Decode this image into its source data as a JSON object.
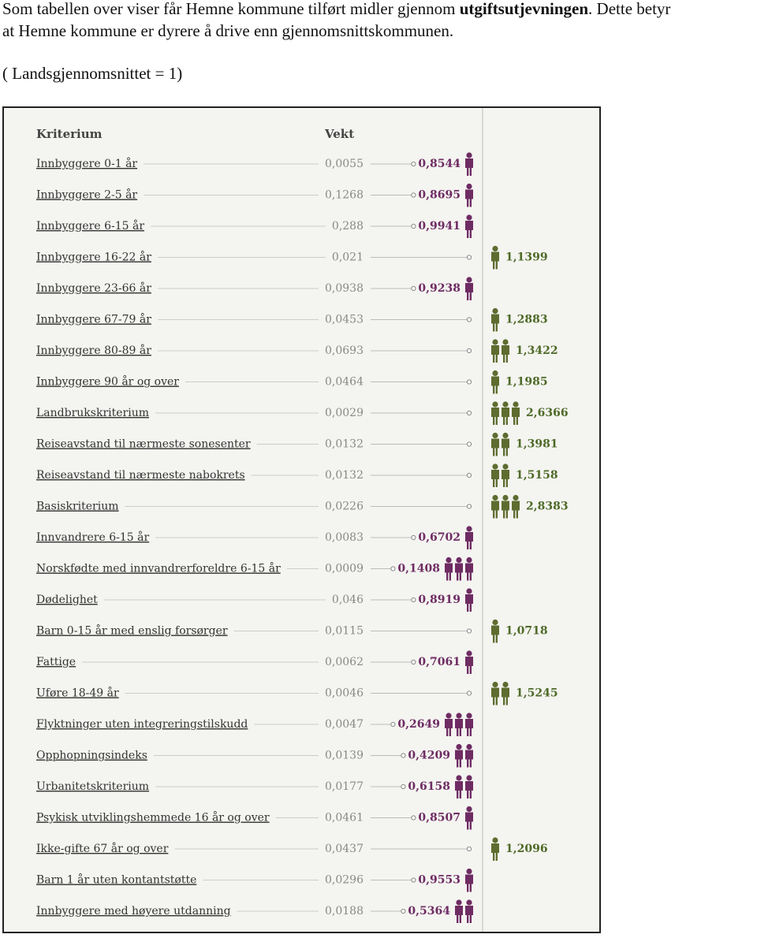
{
  "intro": {
    "line1": [
      "Som tabellen over viser får Hemne kommune tilført midler gjennom ",
      "utgiftsutjevningen",
      ". Dette betyr"
    ],
    "line2": "at Hemne kommune er dyrere å drive enn gjennomsnittskommunen.",
    "note": "( Landsgjennomsnittet = 1)"
  },
  "table": {
    "headers": [
      "Kriterium",
      "Vekt"
    ],
    "rows": [
      {
        "label": "Innbyggere 0-1 år",
        "weight": "0,0055",
        "value": 0.8544,
        "value_label": "0,8544"
      },
      {
        "label": "Innbyggere 2-5 år",
        "weight": "0,1268",
        "value": 0.8695,
        "value_label": "0,8695"
      },
      {
        "label": "Innbyggere 6-15 år",
        "weight": "0,288",
        "value": 0.9941,
        "value_label": "0,9941"
      },
      {
        "label": "Innbyggere 16-22 år",
        "weight": "0,021",
        "value": 1.1399,
        "value_label": "1,1399"
      },
      {
        "label": "Innbyggere 23-66 år",
        "weight": "0,0938",
        "value": 0.9238,
        "value_label": "0,9238"
      },
      {
        "label": "Innbyggere 67-79 år",
        "weight": "0,0453",
        "value": 1.2883,
        "value_label": "1,2883"
      },
      {
        "label": "Innbyggere 80-89 år",
        "weight": "0,0693",
        "value": 1.3422,
        "value_label": "1,3422"
      },
      {
        "label": "Innbyggere 90 år og over",
        "weight": "0,0464",
        "value": 1.1985,
        "value_label": "1,1985"
      },
      {
        "label": "Landbrukskriterium",
        "weight": "0,0029",
        "value": 2.6366,
        "value_label": "2,6366"
      },
      {
        "label": "Reiseavstand til nærmeste sonesenter",
        "weight": "0,0132",
        "value": 1.3981,
        "value_label": "1,3981"
      },
      {
        "label": "Reiseavstand til nærmeste nabokrets",
        "weight": "0,0132",
        "value": 1.5158,
        "value_label": "1,5158"
      },
      {
        "label": "Basiskriterium",
        "weight": "0,0226",
        "value": 2.8383,
        "value_label": "2,8383"
      },
      {
        "label": "Innvandrere 6-15 år",
        "weight": "0,0083",
        "value": 0.6702,
        "value_label": "0,6702"
      },
      {
        "label": "Norskfødte med innvandrerforeldre 6-15 år",
        "weight": "0,0009",
        "value": 0.1408,
        "value_label": "0,1408"
      },
      {
        "label": "Dødelighet",
        "weight": "0,046",
        "value": 0.8919,
        "value_label": "0,8919"
      },
      {
        "label": "Barn 0-15 år med enslig forsørger",
        "weight": "0,0115",
        "value": 1.0718,
        "value_label": "1,0718"
      },
      {
        "label": "Fattige",
        "weight": "0,0062",
        "value": 0.7061,
        "value_label": "0,7061"
      },
      {
        "label": "Uføre 18-49 år",
        "weight": "0,0046",
        "value": 1.5245,
        "value_label": "1,5245"
      },
      {
        "label": "Flyktninger uten integreringstilskudd",
        "weight": "0,0047",
        "value": 0.2649,
        "value_label": "0,2649"
      },
      {
        "label": "Opphopningsindeks",
        "weight": "0,0139",
        "value": 0.4209,
        "value_label": "0,4209"
      },
      {
        "label": "Urbanitetskriterium",
        "weight": "0,0177",
        "value": 0.6158,
        "value_label": "0,6158"
      },
      {
        "label": "Psykisk utviklingshemmede 16 år og over",
        "weight": "0,0461",
        "value": 0.8507,
        "value_label": "0,8507"
      },
      {
        "label": "Ikke-gifte 67 år og over",
        "weight": "0,0437",
        "value": 1.2096,
        "value_label": "1,2096"
      },
      {
        "label": "Barn 1 år uten kontantstøtte",
        "weight": "0,0296",
        "value": 0.9553,
        "value_label": "0,9553"
      },
      {
        "label": "Innbyggere med høyere utdanning",
        "weight": "0,0188",
        "value": 0.5364,
        "value_label": "0,5364"
      }
    ]
  }
}
